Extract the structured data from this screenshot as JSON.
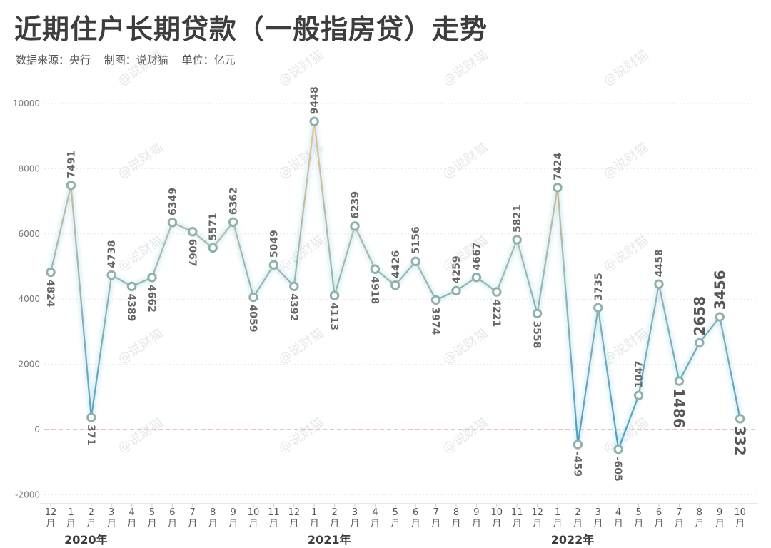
{
  "header": {
    "title": "近期住户长期贷款（一般指房贷）走势",
    "source": "数据来源：央行",
    "maker": "制图：说财猫",
    "unit": "单位：亿元"
  },
  "watermark": "@说财猫",
  "colors": {
    "text": "#3d3d3d",
    "label": "#555555",
    "line_warm": "#f0c08a",
    "line_cool": "#4a9fc2",
    "marker_stroke": "#8fb1ac",
    "zero_line": "#d9a0ab",
    "grid": "#e6e6e6"
  },
  "chart_data": {
    "type": "line",
    "title": "近期住户长期贷款（一般指房贷）走势",
    "xlabel": "",
    "ylabel": "",
    "ylim": [
      -2000,
      10000
    ],
    "yticks": [
      -2000,
      0,
      2000,
      4000,
      6000,
      8000,
      10000
    ],
    "grid": true,
    "months": [
      "12",
      "1",
      "2",
      "3",
      "4",
      "5",
      "6",
      "7",
      "8",
      "9",
      "10",
      "11",
      "12",
      "1",
      "2",
      "3",
      "4",
      "5",
      "6",
      "7",
      "8",
      "9",
      "10",
      "11",
      "12",
      "1",
      "2",
      "3",
      "4",
      "5",
      "6",
      "7",
      "8",
      "9",
      "10"
    ],
    "month_suffix": "月",
    "years": [
      {
        "label": "2020年",
        "index": 1
      },
      {
        "label": "2021年",
        "index": 13
      },
      {
        "label": "2022年",
        "index": 25
      }
    ],
    "values": [
      4824,
      7491,
      371,
      4738,
      4389,
      4662,
      6349,
      6067,
      5571,
      6362,
      4059,
      5049,
      4392,
      9448,
      4113,
      6239,
      4918,
      4426,
      5156,
      3974,
      4259,
      4667,
      4221,
      5821,
      3558,
      7424,
      -459,
      3735,
      -605,
      1047,
      4458,
      1486,
      2658,
      3456,
      332
    ],
    "label_positions": [
      "below",
      "above",
      "below",
      "above",
      "below",
      "below",
      "above",
      "below",
      "above",
      "above",
      "below",
      "above",
      "below",
      "above",
      "below",
      "above",
      "below",
      "above",
      "above",
      "below",
      "above",
      "above",
      "below",
      "above",
      "below",
      "above",
      "below",
      "above",
      "below",
      "above",
      "above",
      "below",
      "above",
      "above",
      "below"
    ],
    "emphasized_labels": [
      31,
      32,
      33,
      34
    ]
  }
}
